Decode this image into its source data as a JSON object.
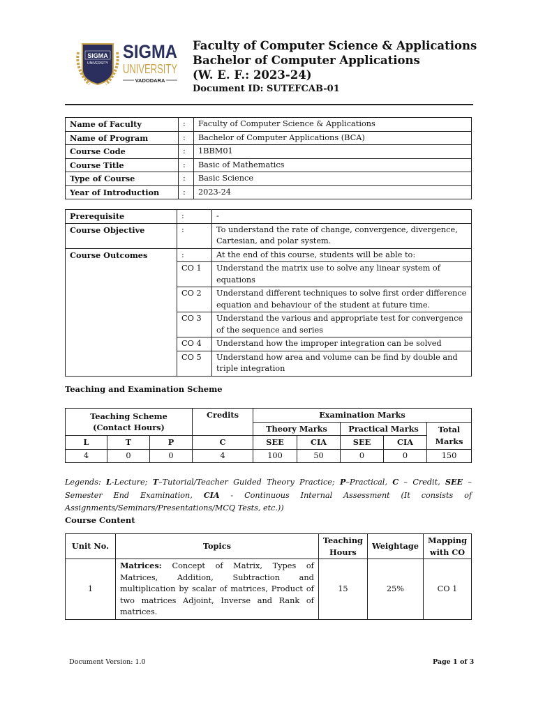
{
  "logo": {
    "name": "SIGMA",
    "sub": "UNIVERSITY",
    "city": "VADODARA",
    "seal_text": "SIGMA UNIVERSITY"
  },
  "header": {
    "line1": "Faculty of Computer Science & Applications",
    "line2": "Bachelor of Computer Applications",
    "line3": "(W. E. F.: 2023-24)",
    "doc_id": "Document ID: SUTEFCAB-01"
  },
  "info": [
    {
      "label": "Name of Faculty",
      "sep": ":",
      "value": "Faculty of Computer Science & Applications"
    },
    {
      "label": "Name of Program",
      "sep": ":",
      "value": "Bachelor of Computer Applications (BCA)"
    },
    {
      "label": "Course Code",
      "sep": ":",
      "value": "1BBM01"
    },
    {
      "label": "Course Title",
      "sep": ":",
      "value": "Basic of Mathematics"
    },
    {
      "label": "Type of Course",
      "sep": ":",
      "value": "Basic Science"
    },
    {
      "label": "Year of Introduction",
      "sep": ":",
      "value": "2023-24"
    }
  ],
  "course": {
    "prereq_label": "Prerequisite",
    "prereq_value": "-",
    "objective_label": "Course Objective",
    "objective_value": "To understand the rate of change, convergence, divergence, Cartesian, and polar system.",
    "outcomes_label": "Course Outcomes",
    "outcomes_intro": "At the end of this course, students will be able to:",
    "sep": ":",
    "outcomes": [
      {
        "co": "CO 1",
        "text": "Understand the matrix use to solve any linear system of equations"
      },
      {
        "co": "CO 2",
        "text": "Understand different techniques to solve first order difference equation and behaviour of the student at future time."
      },
      {
        "co": "CO 3",
        "text": "Understand the various and appropriate test for convergence of the sequence and series"
      },
      {
        "co": "CO 4",
        "text": "Understand how the improper integration can be solved"
      },
      {
        "co": "CO 5",
        "text": "Understand how area and volume can be find by double and triple integration"
      }
    ]
  },
  "scheme": {
    "title": "Teaching and Examination Scheme",
    "teaching": "Teaching Scheme (Contact Hours)",
    "credits": "Credits",
    "exam": "Examination Marks",
    "theory": "Theory Marks",
    "practical": "Practical Marks",
    "total": "Total Marks",
    "cols": [
      "L",
      "T",
      "P",
      "C",
      "SEE",
      "CIA",
      "SEE",
      "CIA"
    ],
    "values": [
      "4",
      "0",
      "0",
      "4",
      "100",
      "50",
      "0",
      "0",
      "150"
    ]
  },
  "legend": {
    "prefix": "Legends: ",
    "items": [
      [
        "L",
        "-Lecture; "
      ],
      [
        "T",
        "–Tutorial/Teacher Guided Theory Practice; "
      ],
      [
        "P",
        "–Practical, "
      ],
      [
        "C",
        " – Credit, "
      ],
      [
        "SEE",
        " – Semester End Examination, "
      ],
      [
        "CIA",
        " - Continuous Internal Assessment (It consists of Assignments/Seminars/Presentations/MCQ Tests, etc.))"
      ]
    ]
  },
  "content": {
    "title": "Course Content",
    "headers": [
      "Unit No.",
      "Topics",
      "Teaching Hours",
      "Weightage",
      "Mapping with CO"
    ],
    "rows": [
      {
        "unit": "1",
        "topic_bold": "Matrices:",
        "topic": " Concept of Matrix, Types of Matrices, Addition, Subtraction and multiplication by scalar of matrices, Product of two matrices Adjoint, Inverse and Rank of matrices.",
        "hours": "15",
        "weight": "25%",
        "co": "CO 1"
      }
    ]
  },
  "footer": {
    "version": "Document Version: 1.0",
    "page": "Page 1 of 3"
  },
  "colors": {
    "logo_navy": "#2a2f5e",
    "logo_gold": "#c9a24a"
  }
}
